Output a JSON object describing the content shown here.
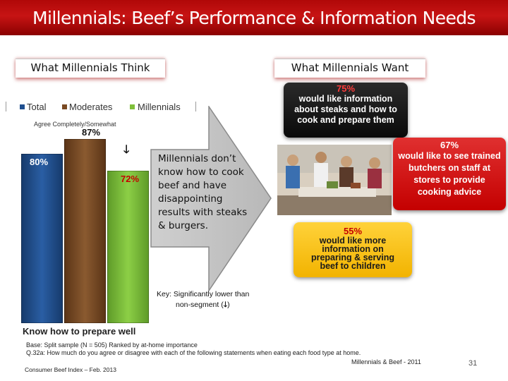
{
  "slide": {
    "title": "Millennials: Beef’s Performance & Information Needs",
    "left_heading": "What Millennials Think",
    "right_heading": "What Millennials Want",
    "agree_label": "Agree Completely/Somewhat",
    "callout": "Millennials don’t know how to cook beef and have disappointing results with steaks & burgers.",
    "key_line1": "Key: Significantly lower than",
    "key_line2": "non-segment (",
    "key_line2_end": ")",
    "down_arrow": "🡓",
    "want_items": [
      {
        "pct": "75%",
        "text": "would like information about steaks and how to cook and prepare them"
      },
      {
        "pct": "67%",
        "text": "would like to see trained butchers on staff at stores to provide cooking advice"
      },
      {
        "pct": "55%",
        "text": "would like more information on preparing & serving beef to children"
      }
    ],
    "base_note": "Base: Split sample (N = 505)      Ranked by at-home importance",
    "question_note": "Q.32a: How much do you agree or disagree with each of the following statements when eating each food type at home.",
    "ref_note": "Millennials & Beef - 2011",
    "source_note": "Consumer Beef Index – Feb. 2013",
    "page_number": "31",
    "colors": {
      "total": "#1f4f8f",
      "moderates": "#7a4a22",
      "millennials": "#7fbf3a",
      "title_red": "#b00808"
    }
  },
  "chart_data": {
    "type": "bar",
    "categories": [
      "Know how to prepare well"
    ],
    "series": [
      {
        "name": "Total",
        "values": [
          80
        ],
        "label": "80%"
      },
      {
        "name": "Moderates",
        "values": [
          87
        ],
        "label": "87%"
      },
      {
        "name": "Millennials",
        "values": [
          72
        ],
        "label": "72%",
        "significantly_lower": true
      }
    ],
    "xlabel": "Know how to prepare well",
    "ylabel": "",
    "ylim": [
      0,
      100
    ],
    "legend_position": "top",
    "grid": false
  }
}
